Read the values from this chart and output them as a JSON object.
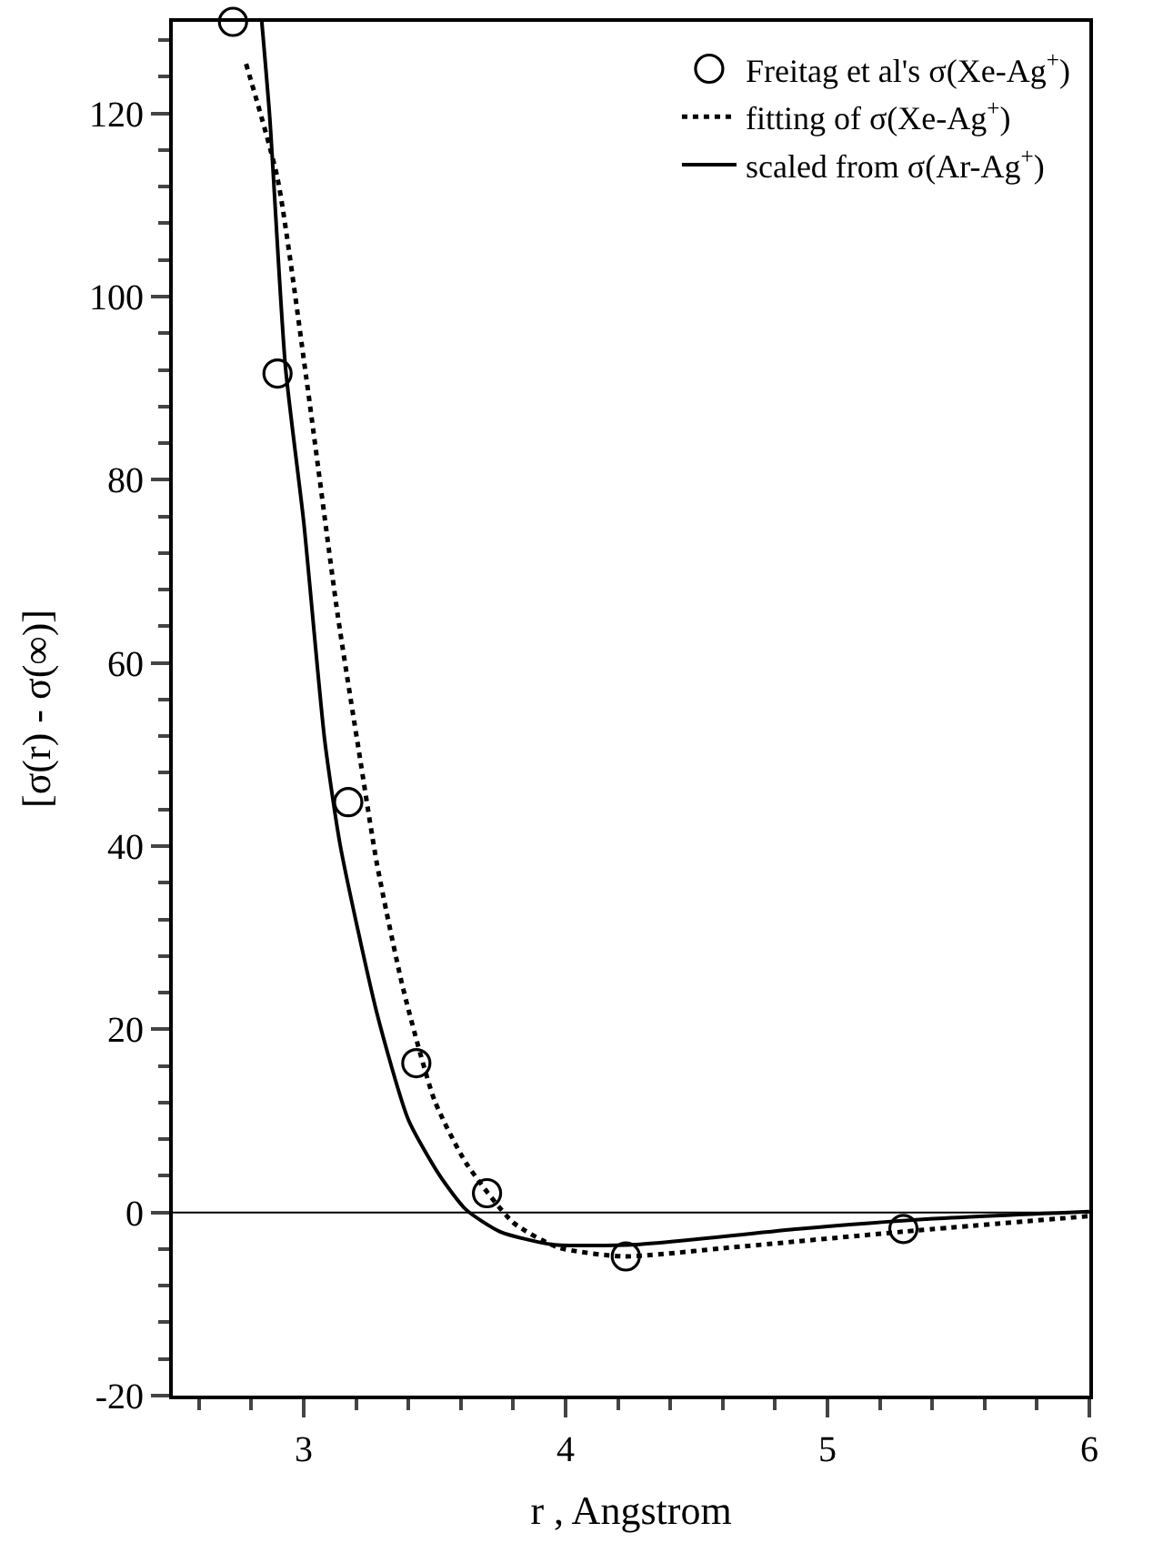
{
  "chart_data": {
    "type": "line",
    "xlabel": "r , Angstrom",
    "ylabel": "[σ(r) - σ(∞)]",
    "xlim": [
      2.5,
      6
    ],
    "ylim": [
      -20,
      130
    ],
    "xticks": [
      {
        "value": 2.6,
        "label": null
      },
      {
        "value": 2.8,
        "label": null
      },
      3,
      {
        "value": 3.2,
        "label": null
      },
      {
        "value": 3.4,
        "label": null
      },
      {
        "value": 3.6,
        "label": null
      },
      {
        "value": 3.8,
        "label": null
      },
      4,
      {
        "value": 4.2,
        "label": null
      },
      {
        "value": 4.4,
        "label": null
      },
      {
        "value": 4.6,
        "label": null
      },
      {
        "value": 4.8,
        "label": null
      },
      5,
      {
        "value": 5.2,
        "label": null
      },
      {
        "value": 5.4,
        "label": null
      },
      {
        "value": 5.6,
        "label": null
      },
      {
        "value": 5.8,
        "label": null
      },
      6
    ],
    "yticks": [
      -20,
      {
        "value": -16,
        "label": null
      },
      {
        "value": -12,
        "label": null
      },
      {
        "value": -8,
        "label": null
      },
      {
        "value": -4,
        "label": null
      },
      0,
      {
        "value": 4,
        "label": null
      },
      {
        "value": 8,
        "label": null
      },
      {
        "value": 12,
        "label": null
      },
      {
        "value": 16,
        "label": null
      },
      20,
      {
        "value": 24,
        "label": null
      },
      {
        "value": 28,
        "label": null
      },
      {
        "value": 32,
        "label": null
      },
      {
        "value": 36,
        "label": null
      },
      40,
      {
        "value": 44,
        "label": null
      },
      {
        "value": 48,
        "label": null
      },
      {
        "value": 52,
        "label": null
      },
      {
        "value": 56,
        "label": null
      },
      60,
      {
        "value": 64,
        "label": null
      },
      {
        "value": 68,
        "label": null
      },
      {
        "value": 72,
        "label": null
      },
      {
        "value": 76,
        "label": null
      },
      80,
      {
        "value": 84,
        "label": null
      },
      {
        "value": 88,
        "label": null
      },
      {
        "value": 92,
        "label": null
      },
      {
        "value": 96,
        "label": null
      },
      100,
      {
        "value": 104,
        "label": null
      },
      {
        "value": 108,
        "label": null
      },
      {
        "value": 112,
        "label": null
      },
      {
        "value": 116,
        "label": null
      },
      120,
      {
        "value": 124,
        "label": null
      },
      {
        "value": 128,
        "label": null
      }
    ],
    "legend": "top right",
    "ref_lines": [
      {
        "axis": "y",
        "value": 0,
        "color": "#000000"
      }
    ],
    "series": [
      {
        "name": "Freitag et al's σ(Xe-Ag$^{+}$)",
        "type": "scatter",
        "marker": "circle",
        "color": "#000000",
        "x": [
          2.73,
          2.9,
          3.17,
          3.43,
          3.7,
          4.23,
          5.29
        ],
        "values": [
          130,
          91.6,
          44.8,
          16.3,
          2.1,
          -4.8,
          -1.8
        ]
      },
      {
        "name": "fitting of σ(Xe-Ag$^{+}$)",
        "line_style": "dotted",
        "color": "#000000",
        "x": [
          2.78,
          2.9,
          3.01,
          3.13,
          3.21,
          3.28,
          3.38,
          3.5,
          3.62,
          3.8,
          3.97,
          4.22,
          4.64,
          5.29,
          6
        ],
        "values": [
          125.4,
          112.9,
          91.1,
          65.2,
          50.5,
          38,
          24.4,
          12.2,
          5.4,
          -1.1,
          -3.8,
          -4.8,
          -3.8,
          -2.1,
          -0.4
        ]
      },
      {
        "name": "scaled from σ(Ar-Ag$^{+}$)",
        "line_style": "solid",
        "color": "#000000",
        "x": [
          2.84,
          2.87,
          2.93,
          3.0,
          3.08,
          3.14,
          3.28,
          3.4,
          3.52,
          3.62,
          3.75,
          3.95,
          4.27,
          4.89,
          5.39,
          6
        ],
        "values": [
          130,
          119.7,
          92.4,
          75.4,
          51.6,
          40,
          21.7,
          10.1,
          4.0,
          0.3,
          -2.1,
          -3.5,
          -3.5,
          -1.8,
          -0.7,
          0.1
        ]
      }
    ]
  }
}
